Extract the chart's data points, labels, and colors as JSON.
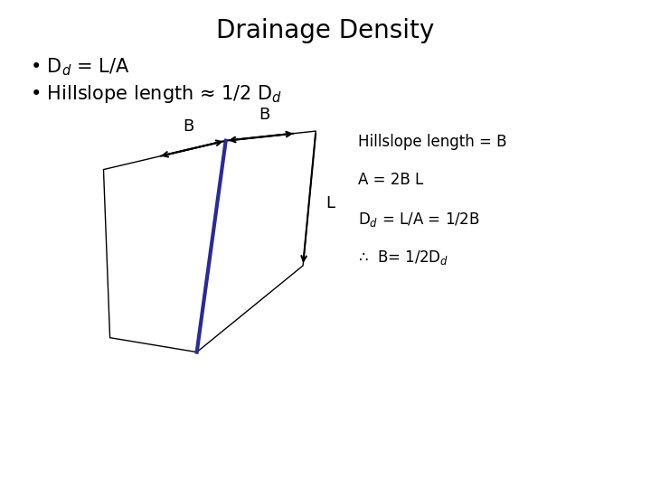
{
  "title": "Drainage Density",
  "bullet1": "D$_d$ = L/A",
  "bullet2": "Hillslope length ≈ 1/2 D$_d$",
  "label_B_left": "B",
  "label_B_right": "B",
  "label_L": "L",
  "annotation1": "Hillslope length = B",
  "annotation2": "A = 2B L",
  "annotation3": "D$_d$ = L/A = 1/2B",
  "annotation4": "∴  B= 1/2D$_d$",
  "bg_color": "#ffffff",
  "shape_edge_color": "#000000",
  "ridge_color": "#2a2a99",
  "title_fontsize": 20,
  "bullet_fontsize": 15,
  "annot_fontsize": 12
}
